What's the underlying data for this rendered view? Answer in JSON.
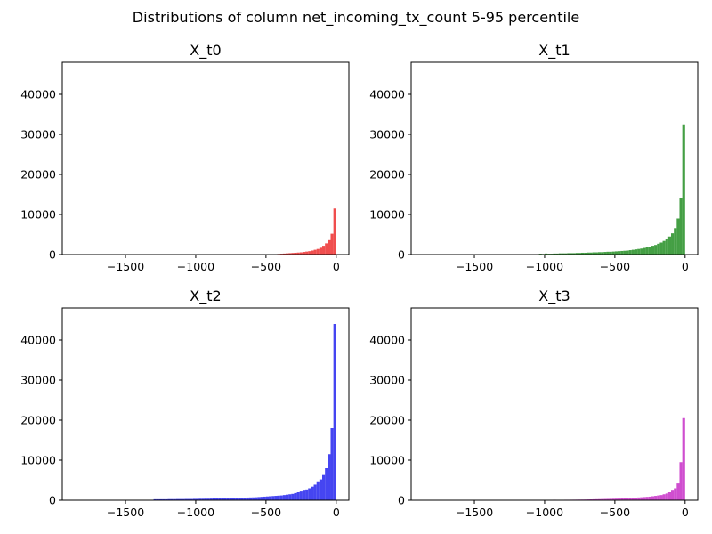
{
  "figure": {
    "title": "Distributions of column net_incoming_tx_count 5-95 percentile"
  },
  "chart_data": [
    {
      "type": "bar",
      "title": "X_t0",
      "color": "#ef4444",
      "xlim": [
        -1950,
        90
      ],
      "ylim": [
        0,
        48000
      ],
      "xticks": [
        -1500,
        -1000,
        -500,
        0
      ],
      "xtick_labels": [
        "−1500",
        "−1000",
        "−500",
        "0"
      ],
      "yticks": [
        0,
        10000,
        20000,
        30000,
        40000
      ],
      "ytick_labels": [
        "0",
        "10000",
        "20000",
        "30000",
        "40000"
      ],
      "bin_width": 20,
      "x": [
        -460,
        -440,
        -420,
        -400,
        -380,
        -360,
        -340,
        -320,
        -300,
        -280,
        -260,
        -240,
        -220,
        -200,
        -180,
        -160,
        -140,
        -120,
        -100,
        -80,
        -60,
        -40,
        -20
      ],
      "values": [
        80,
        100,
        150,
        200,
        250,
        300,
        350,
        400,
        450,
        500,
        550,
        650,
        750,
        850,
        1000,
        1200,
        1400,
        1700,
        2200,
        2800,
        3600,
        5200,
        11500
      ]
    },
    {
      "type": "bar",
      "title": "X_t1",
      "color": "#3a9a3a",
      "xlim": [
        -1950,
        90
      ],
      "ylim": [
        0,
        48000
      ],
      "xticks": [
        -1500,
        -1000,
        -500,
        0
      ],
      "xtick_labels": [
        "−1500",
        "−1000",
        "−500",
        "0"
      ],
      "yticks": [
        0,
        10000,
        20000,
        30000,
        40000
      ],
      "ytick_labels": [
        "0",
        "10000",
        "20000",
        "30000",
        "40000"
      ],
      "bin_width": 20,
      "x": [
        -1060,
        -1040,
        -1020,
        -1000,
        -980,
        -960,
        -940,
        -920,
        -900,
        -880,
        -860,
        -840,
        -820,
        -800,
        -780,
        -760,
        -740,
        -720,
        -700,
        -680,
        -660,
        -640,
        -620,
        -600,
        -580,
        -560,
        -540,
        -520,
        -500,
        -480,
        -460,
        -440,
        -420,
        -400,
        -380,
        -360,
        -340,
        -320,
        -300,
        -280,
        -260,
        -240,
        -220,
        -200,
        -180,
        -160,
        -140,
        -120,
        -100,
        -80,
        -60,
        -40,
        -20
      ],
      "values": [
        100,
        200,
        150,
        250,
        200,
        200,
        250,
        250,
        300,
        300,
        300,
        350,
        350,
        350,
        400,
        400,
        450,
        450,
        500,
        500,
        550,
        550,
        600,
        600,
        650,
        700,
        700,
        750,
        800,
        850,
        900,
        950,
        1000,
        1100,
        1200,
        1300,
        1400,
        1500,
        1650,
        1800,
        2000,
        2200,
        2400,
        2700,
        3000,
        3400,
        3900,
        4500,
        5300,
        6600,
        9000,
        14000,
        32500
      ]
    },
    {
      "type": "bar",
      "title": "X_t2",
      "color": "#3b3bf0",
      "xlim": [
        -1950,
        90
      ],
      "ylim": [
        0,
        48000
      ],
      "xticks": [
        -1500,
        -1000,
        -500,
        0
      ],
      "xtick_labels": [
        "−1500",
        "−1000",
        "−500",
        "0"
      ],
      "yticks": [
        0,
        10000,
        20000,
        30000,
        40000
      ],
      "ytick_labels": [
        "0",
        "10000",
        "20000",
        "30000",
        "40000"
      ],
      "bin_width": 20,
      "x": [
        -1300,
        -1280,
        -1260,
        -1240,
        -1220,
        -1200,
        -1180,
        -1160,
        -1140,
        -1120,
        -1100,
        -1080,
        -1060,
        -1040,
        -1020,
        -1000,
        -980,
        -960,
        -940,
        -920,
        -900,
        -880,
        -860,
        -840,
        -820,
        -800,
        -780,
        -760,
        -740,
        -720,
        -700,
        -680,
        -660,
        -640,
        -620,
        -600,
        -580,
        -560,
        -540,
        -520,
        -500,
        -480,
        -460,
        -440,
        -420,
        -400,
        -380,
        -360,
        -340,
        -320,
        -300,
        -280,
        -260,
        -240,
        -220,
        -200,
        -180,
        -160,
        -140,
        -120,
        -100,
        -80,
        -60,
        -40,
        -20
      ],
      "values": [
        250,
        250,
        250,
        250,
        250,
        280,
        280,
        280,
        300,
        300,
        300,
        320,
        320,
        320,
        350,
        350,
        380,
        380,
        400,
        400,
        420,
        450,
        450,
        480,
        500,
        500,
        520,
        550,
        560,
        580,
        600,
        620,
        650,
        680,
        700,
        720,
        750,
        800,
        850,
        900,
        950,
        1000,
        1050,
        1100,
        1150,
        1200,
        1300,
        1400,
        1500,
        1600,
        1800,
        2000,
        2200,
        2400,
        2700,
        3000,
        3400,
        3900,
        4500,
        5200,
        6300,
        8000,
        11500,
        18000,
        44000
      ]
    },
    {
      "type": "bar",
      "title": "X_t3",
      "color": "#cc44cc",
      "xlim": [
        -1950,
        90
      ],
      "ylim": [
        0,
        48000
      ],
      "xticks": [
        -1500,
        -1000,
        -500,
        0
      ],
      "xtick_labels": [
        "−1500",
        "−1000",
        "−500",
        "0"
      ],
      "yticks": [
        0,
        10000,
        20000,
        30000,
        40000
      ],
      "ytick_labels": [
        "0",
        "10000",
        "20000",
        "30000",
        "40000"
      ],
      "bin_width": 20,
      "x": [
        -1000,
        -980,
        -960,
        -940,
        -920,
        -900,
        -880,
        -860,
        -840,
        -820,
        -800,
        -780,
        -760,
        -740,
        -720,
        -700,
        -680,
        -660,
        -640,
        -620,
        -600,
        -580,
        -560,
        -540,
        -520,
        -500,
        -480,
        -460,
        -440,
        -420,
        -400,
        -380,
        -360,
        -340,
        -320,
        -300,
        -280,
        -260,
        -240,
        -220,
        -200,
        -180,
        -160,
        -140,
        -120,
        -100,
        -80,
        -60,
        -40,
        -20
      ],
      "values": [
        100,
        100,
        80,
        120,
        100,
        100,
        100,
        120,
        120,
        130,
        140,
        150,
        160,
        170,
        180,
        200,
        220,
        240,
        260,
        280,
        300,
        320,
        340,
        360,
        380,
        400,
        420,
        450,
        480,
        500,
        550,
        600,
        650,
        700,
        750,
        800,
        850,
        900,
        1000,
        1100,
        1200,
        1300,
        1500,
        1700,
        2000,
        2400,
        3000,
        4200,
        9500,
        20500
      ]
    }
  ]
}
